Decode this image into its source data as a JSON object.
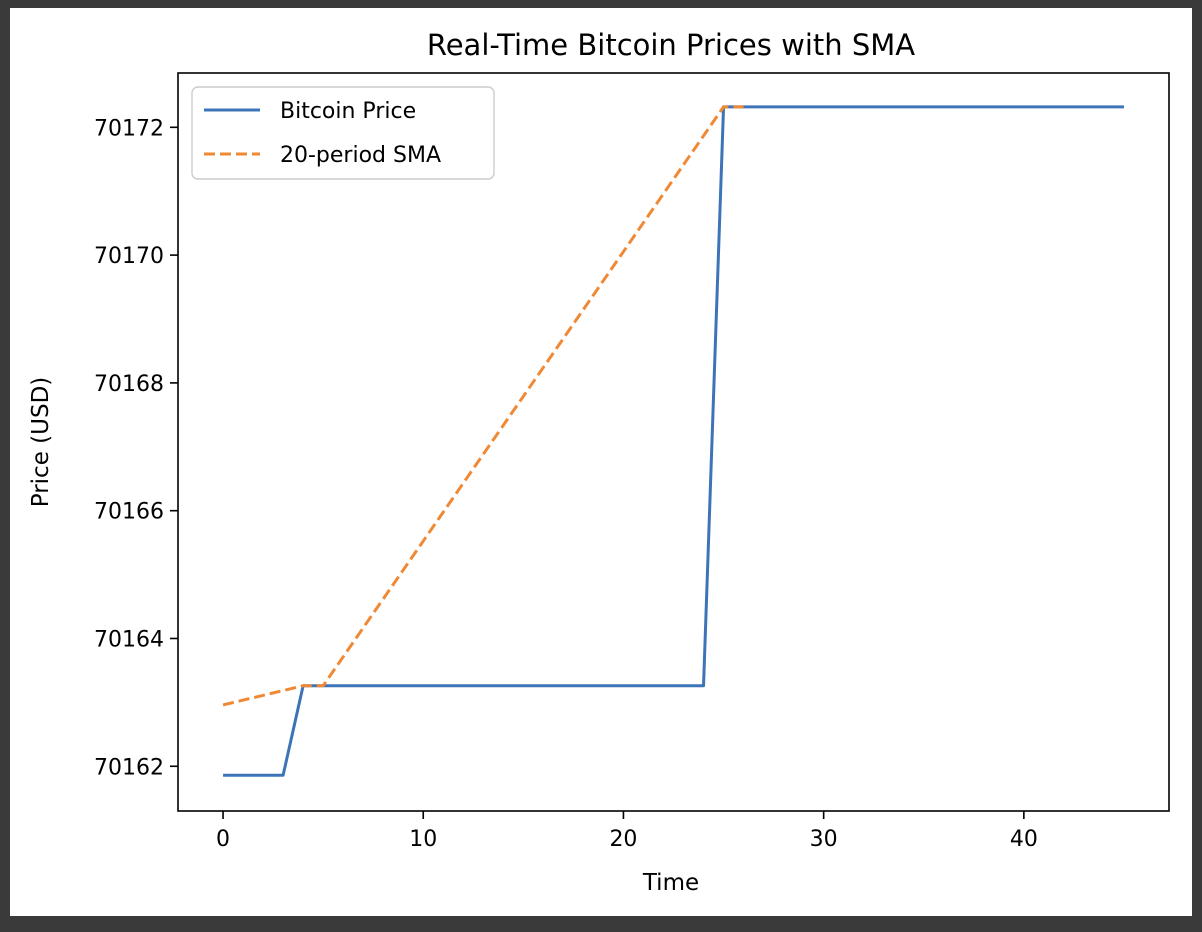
{
  "chart_data": {
    "type": "line",
    "title": "Real-Time Bitcoin Prices with SMA",
    "xlabel": "Time",
    "ylabel": "Price (USD)",
    "xlim": [
      -2.25,
      47.25
    ],
    "ylim": [
      70161.3,
      70172.85
    ],
    "xticks": [
      0,
      10,
      20,
      30,
      40
    ],
    "yticks": [
      70162,
      70164,
      70166,
      70168,
      70170,
      70172
    ],
    "grid": false,
    "legend_position": "upper-left",
    "series": [
      {
        "name": "Bitcoin Price",
        "color": "#3d74b8",
        "style": "solid",
        "x": [
          0,
          1,
          2,
          3,
          4,
          5,
          6,
          7,
          8,
          9,
          10,
          11,
          12,
          13,
          14,
          15,
          16,
          17,
          18,
          19,
          20,
          21,
          22,
          23,
          24,
          25,
          26,
          27,
          28,
          29,
          30,
          31,
          32,
          33,
          34,
          35,
          36,
          37,
          38,
          39,
          40,
          41,
          42,
          43,
          44,
          45
        ],
        "y": [
          70161.86,
          70161.86,
          70161.86,
          70161.86,
          70163.26,
          70163.26,
          70163.26,
          70163.26,
          70163.26,
          70163.26,
          70163.26,
          70163.26,
          70163.26,
          70163.26,
          70163.26,
          70163.26,
          70163.26,
          70163.26,
          70163.26,
          70163.26,
          70163.26,
          70163.26,
          70163.26,
          70163.26,
          70163.26,
          70172.32,
          70172.32,
          70172.32,
          70172.32,
          70172.32,
          70172.32,
          70172.32,
          70172.32,
          70172.32,
          70172.32,
          70172.32,
          70172.32,
          70172.32,
          70172.32,
          70172.32,
          70172.32,
          70172.32,
          70172.32,
          70172.32,
          70172.32,
          70172.32
        ]
      },
      {
        "name": "20-period SMA",
        "color": "#ef8936",
        "style": "dashed",
        "x": [
          0,
          4,
          5,
          25,
          26
        ],
        "y": [
          70162.96,
          70163.26,
          70163.26,
          70172.32,
          70172.32
        ]
      }
    ]
  }
}
